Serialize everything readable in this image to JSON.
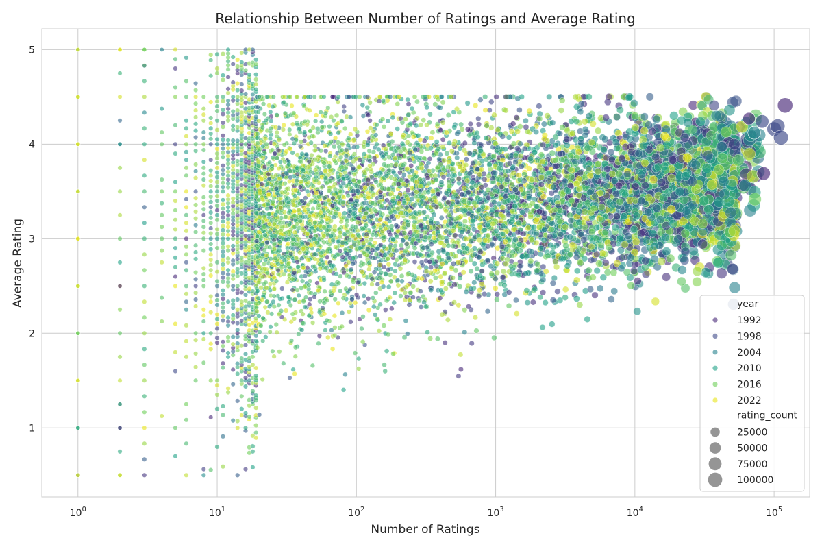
{
  "chart_data": {
    "type": "scatter",
    "title": "Relationship Between Number of Ratings and Average Rating",
    "xlabel": "Number of Ratings",
    "ylabel": "Average Rating",
    "x_scale": "log",
    "xlim": [
      0.55,
      180000
    ],
    "ylim": [
      0.27,
      5.22
    ],
    "x_ticks": [
      {
        "value": 1,
        "base": "10",
        "exp": "0"
      },
      {
        "value": 10,
        "base": "10",
        "exp": "1"
      },
      {
        "value": 100,
        "base": "10",
        "exp": "2"
      },
      {
        "value": 1000,
        "base": "10",
        "exp": "3"
      },
      {
        "value": 10000,
        "base": "10",
        "exp": "4"
      },
      {
        "value": 100000,
        "base": "10",
        "exp": "5"
      }
    ],
    "y_ticks": [
      1,
      2,
      3,
      4,
      5
    ],
    "grid": true,
    "legend_position": "lower right",
    "hue_title": "year",
    "hue_entries": [
      {
        "label": "1992",
        "color": "#482878"
      },
      {
        "label": "1998",
        "color": "#3e4a89"
      },
      {
        "label": "2004",
        "color": "#26828e"
      },
      {
        "label": "2010",
        "color": "#1fa187"
      },
      {
        "label": "2016",
        "color": "#6ece58"
      },
      {
        "label": "2022",
        "color": "#e7e419"
      }
    ],
    "size_title": "rating_count",
    "size_entries": [
      {
        "label": "25000",
        "value": 25000
      },
      {
        "label": "50000",
        "value": 50000
      },
      {
        "label": "75000",
        "value": 75000
      },
      {
        "label": "100000",
        "value": 100000
      }
    ],
    "highlighted_points": [
      {
        "x": 1,
        "y": 5.0,
        "year": 2022
      },
      {
        "x": 1,
        "y": 4.5,
        "year": 2022
      },
      {
        "x": 1,
        "y": 4.0,
        "year": 2022
      },
      {
        "x": 1,
        "y": 3.5,
        "year": 2022
      },
      {
        "x": 1,
        "y": 3.0,
        "year": 2022
      },
      {
        "x": 1,
        "y": 2.5,
        "year": 2022
      },
      {
        "x": 1,
        "y": 2.0,
        "year": 2016
      },
      {
        "x": 1,
        "y": 1.5,
        "year": 2022
      },
      {
        "x": 1,
        "y": 1.0,
        "year": 2010
      },
      {
        "x": 1,
        "y": 0.5,
        "year": 2022
      },
      {
        "x": 2,
        "y": 5.0,
        "year": 2022
      },
      {
        "x": 2,
        "y": 4.0,
        "year": 2004
      },
      {
        "x": 2,
        "y": 2.5,
        "year": 1992
      },
      {
        "x": 2,
        "y": 1.25,
        "year": 2004
      },
      {
        "x": 2,
        "y": 1.0,
        "year": 1992
      },
      {
        "x": 2,
        "y": 0.5,
        "year": 2022
      },
      {
        "x": 3,
        "y": 5.0,
        "year": 2016
      },
      {
        "x": 3,
        "y": 4.83,
        "year": 2004
      },
      {
        "x": 4,
        "y": 5.0,
        "year": 2004
      },
      {
        "x": 66000,
        "y": 4.27,
        "year": 1992
      },
      {
        "x": 72000,
        "y": 4.12,
        "year": 2004
      },
      {
        "x": 82000,
        "y": 4.24,
        "year": 1998
      },
      {
        "x": 84000,
        "y": 3.69,
        "year": 1992
      },
      {
        "x": 100000,
        "y": 4.16,
        "year": 1998
      },
      {
        "x": 106000,
        "y": 4.19,
        "year": 1998
      },
      {
        "x": 112000,
        "y": 4.07,
        "year": 1998
      },
      {
        "x": 120000,
        "y": 4.41,
        "year": 1992
      }
    ],
    "point_cloud_note": ""
  }
}
